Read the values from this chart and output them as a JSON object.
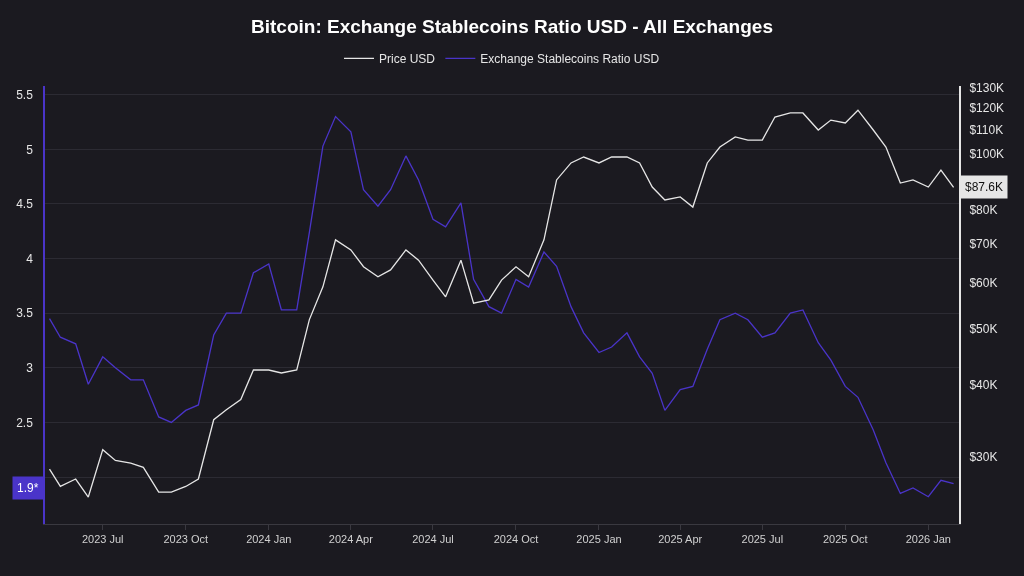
{
  "chart_data": {
    "type": "line",
    "title": "Bitcoin: Exchange Stablecoins Ratio USD - All Exchanges",
    "x": [
      "2023-05-03",
      "2023-05-15",
      "2023-06-01",
      "2023-06-15",
      "2023-07-01",
      "2023-07-15",
      "2023-08-01",
      "2023-08-15",
      "2023-09-01",
      "2023-09-15",
      "2023-10-01",
      "2023-10-15",
      "2023-11-01",
      "2023-11-15",
      "2023-12-01",
      "2023-12-15",
      "2024-01-01",
      "2024-01-15",
      "2024-02-01",
      "2024-02-15",
      "2024-03-01",
      "2024-03-15",
      "2024-04-01",
      "2024-04-15",
      "2024-05-01",
      "2024-05-15",
      "2024-06-01",
      "2024-06-15",
      "2024-07-01",
      "2024-07-15",
      "2024-08-01",
      "2024-08-15",
      "2024-09-01",
      "2024-09-15",
      "2024-10-01",
      "2024-10-15",
      "2024-11-01",
      "2024-11-15",
      "2024-12-01",
      "2024-12-15",
      "2025-01-01",
      "2025-01-15",
      "2025-02-01",
      "2025-02-15",
      "2025-03-01",
      "2025-03-15",
      "2025-04-01",
      "2025-04-15",
      "2025-05-01",
      "2025-05-15",
      "2025-06-01",
      "2025-06-15",
      "2025-07-01",
      "2025-07-15",
      "2025-08-01",
      "2025-08-15",
      "2025-09-01",
      "2025-09-15",
      "2025-10-01",
      "2025-10-15",
      "2025-11-01",
      "2025-11-15",
      "2025-12-01",
      "2025-12-15",
      "2026-01-01",
      "2026-01-15",
      "2026-01-29"
    ],
    "series": [
      {
        "name": "Price USD",
        "color": "#e6e6e6",
        "axis": "y2",
        "values": [
          28600,
          26700,
          27500,
          25600,
          30900,
          29600,
          29300,
          28800,
          26100,
          26100,
          26700,
          27500,
          34800,
          36200,
          37700,
          42400,
          42400,
          41900,
          42400,
          51800,
          59000,
          71100,
          68300,
          63900,
          61400,
          63100,
          68300,
          65600,
          60600,
          56700,
          65600,
          55300,
          56000,
          60600,
          63900,
          61400,
          71100,
          90200,
          96500,
          98800,
          96500,
          98800,
          98800,
          96500,
          87700,
          83300,
          84300,
          81000,
          96500,
          102800,
          107000,
          105700,
          105700,
          115800,
          117700,
          117700,
          110000,
          114400,
          113100,
          119000,
          110000,
          102800,
          89100,
          90200,
          87700,
          93800,
          87600
        ]
      },
      {
        "name": "Exchange Stablecoins Ratio USD",
        "color": "#4a34c9",
        "axis": "y",
        "values": [
          3.45,
          3.28,
          3.22,
          2.85,
          3.1,
          3.0,
          2.89,
          2.89,
          2.55,
          2.5,
          2.61,
          2.66,
          3.3,
          3.5,
          3.5,
          3.87,
          3.95,
          3.53,
          3.53,
          4.24,
          5.03,
          5.3,
          5.16,
          4.63,
          4.48,
          4.63,
          4.94,
          4.72,
          4.36,
          4.29,
          4.51,
          3.81,
          3.56,
          3.5,
          3.81,
          3.74,
          4.06,
          3.93,
          3.56,
          3.32,
          3.14,
          3.19,
          3.32,
          3.1,
          2.95,
          2.61,
          2.8,
          2.83,
          3.17,
          3.44,
          3.5,
          3.44,
          3.28,
          3.32,
          3.5,
          3.53,
          3.23,
          3.07,
          2.83,
          2.73,
          2.43,
          2.13,
          1.85,
          1.9,
          1.82,
          1.97,
          1.94
        ]
      }
    ],
    "xlim": [
      "2023-04-28",
      "2026-02-04"
    ],
    "xticks": [
      {
        "value": "2023-07-01",
        "label": "2023 Jul"
      },
      {
        "value": "2023-10-01",
        "label": "2023 Oct"
      },
      {
        "value": "2024-01-01",
        "label": "2024 Jan"
      },
      {
        "value": "2024-04-01",
        "label": "2024 Apr"
      },
      {
        "value": "2024-07-01",
        "label": "2024 Jul"
      },
      {
        "value": "2024-10-01",
        "label": "2024 Oct"
      },
      {
        "value": "2025-01-01",
        "label": "2025 Jan"
      },
      {
        "value": "2025-04-01",
        "label": "2025 Apr"
      },
      {
        "value": "2025-07-01",
        "label": "2025 Jul"
      },
      {
        "value": "2025-10-01",
        "label": "2025 Oct"
      },
      {
        "value": "2026-01-01",
        "label": "2026 Jan"
      }
    ],
    "ylim": [
      1.57,
      5.58
    ],
    "yticks": [
      {
        "value": 2,
        "label": null
      },
      {
        "value": 2.5,
        "label": "2.5"
      },
      {
        "value": 3,
        "label": "3"
      },
      {
        "value": 3.5,
        "label": "3.5"
      },
      {
        "value": 4,
        "label": "4"
      },
      {
        "value": 4.5,
        "label": "4.5"
      },
      {
        "value": 5,
        "label": "5"
      },
      {
        "value": 5.5,
        "label": "5.5"
      }
    ],
    "y2lim": [
      23000,
      131000
    ],
    "y2ticks": [
      {
        "value": 30000,
        "label": "$30K"
      },
      {
        "value": 40000,
        "label": "$40K"
      },
      {
        "value": 50000,
        "label": "$50K"
      },
      {
        "value": 60000,
        "label": "$60K"
      },
      {
        "value": 70000,
        "label": "$70K"
      },
      {
        "value": 80000,
        "label": "$80K"
      },
      {
        "value": 100000,
        "label": "$100K"
      },
      {
        "value": 110000,
        "label": "$110K"
      },
      {
        "value": 120000,
        "label": "$120K"
      },
      {
        "value": 130000,
        "label": "$130K"
      }
    ],
    "log": "y2",
    "grid": "y",
    "legend": "top",
    "marker": "none",
    "line_style": "solid",
    "annotations": [
      "1.9*",
      "$87.6K"
    ]
  }
}
